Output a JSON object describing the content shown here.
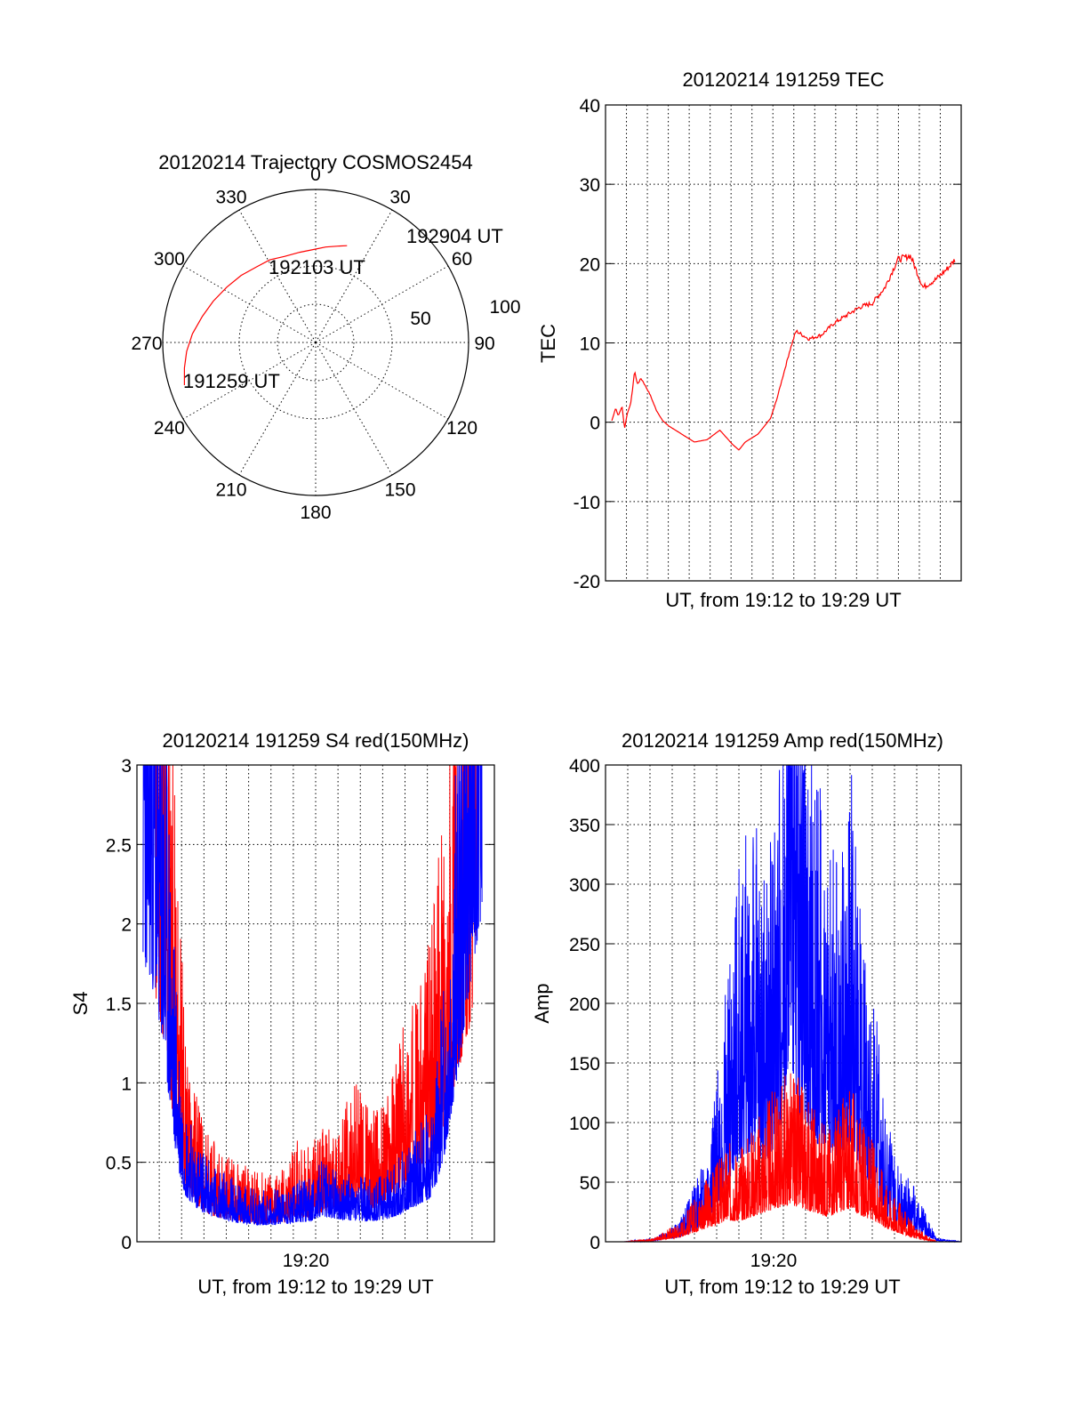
{
  "colors": {
    "red": "#ff0000",
    "blue": "#0000ff",
    "axis": "#000000"
  },
  "chart_data": [
    {
      "id": "trajectory",
      "type": "polar",
      "title": "20120214 Trajectory COSMOS2454",
      "azimuth_labels": [
        "0",
        "30",
        "60",
        "90",
        "120",
        "150",
        "180",
        "210",
        "240",
        "270",
        "300",
        "330"
      ],
      "elevation_ring_labels": [
        "50",
        "100"
      ],
      "elevation_rings": [
        50,
        100
      ],
      "grid": true,
      "series": [
        {
          "color": "#ff0000",
          "zenith_angle": [
            95,
            92,
            89,
            85,
            80,
            76,
            72,
            69,
            66,
            65,
            63,
            63,
            64,
            66,
            68,
            70
          ],
          "azimuth_deg": [
            252,
            259,
            266,
            274,
            283,
            292,
            302,
            312,
            322,
            331,
            340,
            350,
            359,
            6,
            13,
            18
          ]
        }
      ],
      "annotations": [
        {
          "text": "192904 UT",
          "azimuth_deg": 18,
          "zenith_angle": 70
        },
        {
          "text": "192103 UT",
          "azimuth_deg": 325,
          "zenith_angle": 30
        },
        {
          "text": "191259 UT",
          "azimuth_deg": 254,
          "zenith_angle": 85
        }
      ]
    },
    {
      "id": "tec",
      "type": "line",
      "title": "20120214 191259 TEC",
      "xlabel": "UT, from 19:12 to 19:29 UT",
      "ylabel": "TEC",
      "xlim": [
        19.21,
        19.49
      ],
      "ylim": [
        -20,
        40
      ],
      "yticks": [
        -20,
        -10,
        0,
        10,
        20,
        30,
        40
      ],
      "grid": true,
      "series": [
        {
          "color": "#ff0000",
          "x": [
            19.215,
            19.218,
            19.22,
            19.223,
            19.225,
            19.227,
            19.23,
            19.233,
            19.235,
            19.238,
            19.24,
            19.245,
            19.25,
            19.255,
            19.26,
            19.265,
            19.27,
            19.28,
            19.29,
            19.3,
            19.31,
            19.315,
            19.32,
            19.33,
            19.34,
            19.345,
            19.35,
            19.355,
            19.36,
            19.37,
            19.38,
            19.39,
            19.4,
            19.41,
            19.42,
            19.43,
            19.44,
            19.45,
            19.46,
            19.47,
            19.48,
            19.485
          ],
          "y": [
            0.2,
            1.8,
            0.8,
            2.0,
            -0.8,
            1.0,
            2.5,
            6.5,
            4.8,
            5.5,
            5.0,
            3.5,
            1.5,
            0.2,
            -0.5,
            -1.0,
            -1.5,
            -2.5,
            -2.2,
            -1.0,
            -2.8,
            -3.5,
            -2.5,
            -1.5,
            0.5,
            3.0,
            6.0,
            9.0,
            11.5,
            10.5,
            11.0,
            12.5,
            13.5,
            14.5,
            15.0,
            17.0,
            20.5,
            21.0,
            17.0,
            18.0,
            19.5,
            20.5
          ]
        }
      ]
    },
    {
      "id": "s4",
      "type": "line",
      "title": "20120214 191259 S4 red(150MHz)",
      "xlabel": "UT, from 19:12 to 19:29 UT",
      "ylabel": "S4",
      "xlim": [
        19.2,
        19.49
      ],
      "ylim": [
        0,
        3
      ],
      "yticks": [
        0,
        0.5,
        1,
        1.5,
        2,
        2.5,
        3
      ],
      "ytick_labels": [
        "0",
        "0.5",
        "1",
        "1.5",
        "2",
        "2.5",
        "3"
      ],
      "xtick_label": "19:20",
      "grid": true,
      "series": [
        {
          "color": "#ff0000",
          "x": [
            19.215,
            19.22,
            19.225,
            19.23,
            19.235,
            19.24,
            19.25,
            19.26,
            19.27,
            19.28,
            19.29,
            19.3,
            19.31,
            19.32,
            19.33,
            19.34,
            19.35,
            19.36,
            19.37,
            19.38,
            19.39,
            19.4,
            19.41,
            19.42,
            19.43,
            19.44,
            19.45,
            19.46,
            19.47,
            19.475
          ],
          "y": [
            2.0,
            1.8,
            1.4,
            1.0,
            0.7,
            0.45,
            0.3,
            0.22,
            0.2,
            0.18,
            0.16,
            0.15,
            0.15,
            0.16,
            0.22,
            0.2,
            0.25,
            0.24,
            0.3,
            0.35,
            0.28,
            0.3,
            0.4,
            0.5,
            0.55,
            0.7,
            1.0,
            1.4,
            1.8,
            2.2
          ]
        },
        {
          "color": "#0000ff",
          "x": [
            19.205,
            19.21,
            19.215,
            19.22,
            19.225,
            19.23,
            19.235,
            19.24,
            19.25,
            19.26,
            19.27,
            19.28,
            19.29,
            19.3,
            19.31,
            19.32,
            19.33,
            19.34,
            19.35,
            19.36,
            19.37,
            19.38,
            19.39,
            19.4,
            19.41,
            19.42,
            19.43,
            19.44,
            19.45,
            19.46,
            19.47,
            19.48
          ],
          "y": [
            2.2,
            2.1,
            1.9,
            1.6,
            1.2,
            0.8,
            0.5,
            0.35,
            0.25,
            0.2,
            0.18,
            0.15,
            0.14,
            0.13,
            0.13,
            0.14,
            0.15,
            0.16,
            0.2,
            0.18,
            0.17,
            0.16,
            0.16,
            0.17,
            0.2,
            0.25,
            0.3,
            0.35,
            0.7,
            1.3,
            2.0,
            2.6
          ]
        }
      ]
    },
    {
      "id": "amp",
      "type": "line",
      "title": "20120214 191259 Amp red(150MHz)",
      "xlabel": "UT, from 19:12 to 19:29 UT",
      "ylabel": "Amp",
      "xlim": [
        19.2,
        19.49
      ],
      "ylim": [
        0,
        400
      ],
      "yticks": [
        0,
        50,
        100,
        150,
        200,
        250,
        300,
        350,
        400
      ],
      "xtick_label": "19:20",
      "grid": true,
      "series": [
        {
          "color": "#0000ff",
          "x": [
            19.215,
            19.24,
            19.26,
            19.28,
            19.29,
            19.3,
            19.31,
            19.32,
            19.33,
            19.34,
            19.345,
            19.35,
            19.355,
            19.36,
            19.37,
            19.38,
            19.39,
            19.4,
            19.41,
            19.42,
            19.43,
            19.44,
            19.45,
            19.46,
            19.47,
            19.49
          ],
          "y": [
            0,
            1,
            5,
            20,
            40,
            70,
            100,
            110,
            95,
            120,
            150,
            230,
            180,
            140,
            120,
            110,
            100,
            120,
            80,
            60,
            30,
            20,
            15,
            8,
            1,
            0
          ]
        },
        {
          "color": "#ff0000",
          "x": [
            19.215,
            19.24,
            19.26,
            19.28,
            19.29,
            19.3,
            19.31,
            19.32,
            19.33,
            19.34,
            19.35,
            19.36,
            19.37,
            19.38,
            19.39,
            19.4,
            19.41,
            19.42,
            19.43,
            19.44,
            19.45,
            19.46,
            19.47,
            19.49
          ],
          "y": [
            0,
            1,
            5,
            15,
            20,
            25,
            25,
            30,
            35,
            40,
            45,
            40,
            35,
            30,
            35,
            40,
            30,
            25,
            15,
            10,
            5,
            2,
            0,
            0
          ]
        }
      ]
    }
  ]
}
